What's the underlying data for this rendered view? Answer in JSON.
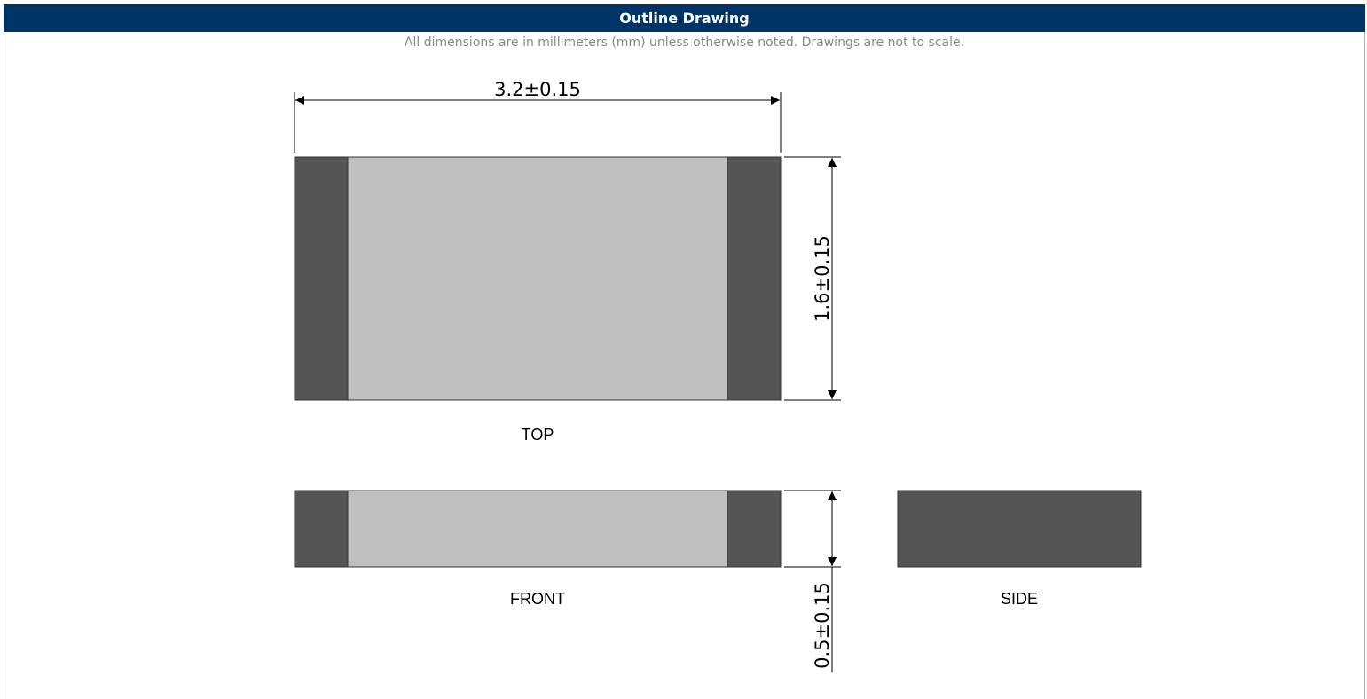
{
  "header": {
    "title": "Outline Drawing"
  },
  "note": "All dimensions are in millimeters (mm) unless otherwise noted. Drawings are not to scale.",
  "dimensions": {
    "length": "3.2±0.15",
    "width": "1.6±0.15",
    "thickness": "0.5±0.15"
  },
  "views": {
    "top": "TOP",
    "front": "FRONT",
    "side": "SIDE"
  },
  "colors": {
    "header_bg": "#003366",
    "terminal": "#555555",
    "body": "#c0c0c0",
    "outline": "#333333"
  }
}
